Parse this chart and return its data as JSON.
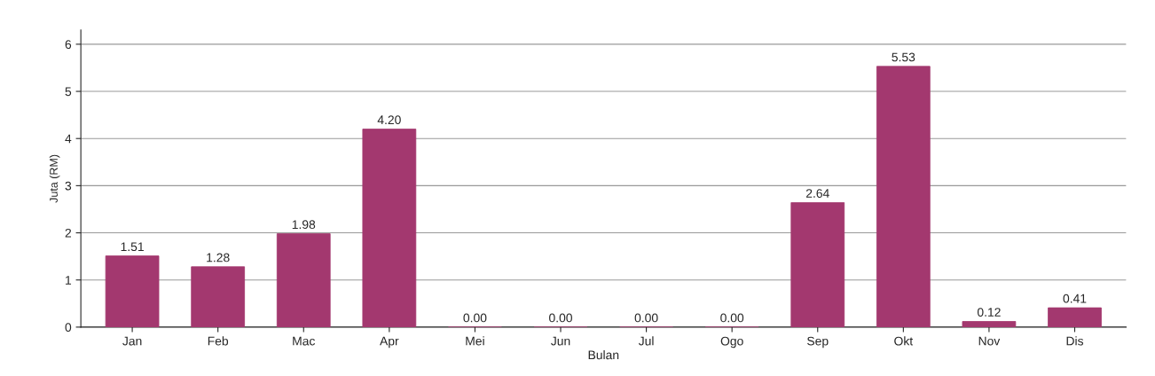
{
  "chart_data": {
    "type": "bar",
    "xlabel": "Bulan",
    "ylabel": "Juta (RM)",
    "categories": [
      "Jan",
      "Feb",
      "Mac",
      "Apr",
      "Mei",
      "Jun",
      "Jul",
      "Ogo",
      "Sep",
      "Okt",
      "Nov",
      "Dis"
    ],
    "values": [
      1.51,
      1.28,
      1.98,
      4.2,
      0,
      0,
      0,
      0,
      2.64,
      5.53,
      0.12,
      0.41
    ],
    "value_labels": [
      "1.51",
      "1.28",
      "1.98",
      "4.20",
      "0.00",
      "0.00",
      "0.00",
      "0.00",
      "2.64",
      "5.53",
      "0.12",
      "0.41"
    ],
    "color": "#a3386f",
    "ylim": [
      0,
      6.3
    ],
    "yticks": [
      0,
      1,
      2,
      3,
      4,
      5,
      6
    ],
    "grid": "y"
  }
}
